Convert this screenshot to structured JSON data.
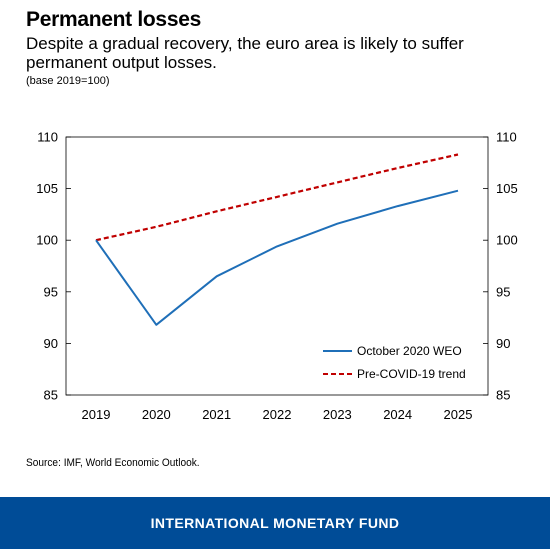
{
  "header": {
    "title": "Permanent losses",
    "subtitle": "Despite a gradual recovery, the euro area is likely to suffer permanent output losses.",
    "note": "(base 2019=100)"
  },
  "source": "Source: IMF, World Economic Outlook.",
  "footer": {
    "org": "INTERNATIONAL MONETARY FUND",
    "background": "#004c97"
  },
  "chart_data": {
    "type": "line",
    "title": "Permanent losses",
    "subtitle": "Despite a gradual recovery, the euro area is likely to suffer permanent output losses.",
    "note": "(base 2019=100)",
    "x": [
      "2019",
      "2020",
      "2021",
      "2022",
      "2023",
      "2024",
      "2025"
    ],
    "series": [
      {
        "name": "October 2020 WEO",
        "values": [
          100,
          91.8,
          96.5,
          99.4,
          101.6,
          103.3,
          104.8
        ],
        "color": "#1f6fb8",
        "style": "solid"
      },
      {
        "name": "Pre-COVID-19 trend",
        "values": [
          100,
          101.3,
          102.8,
          104.2,
          105.6,
          107.0,
          108.3
        ],
        "color": "#c00000",
        "style": "dashed"
      }
    ],
    "ylim": [
      85,
      110
    ],
    "yticks": [
      "85",
      "90",
      "95",
      "100",
      "105",
      "110"
    ],
    "xlabel": "",
    "ylabel": "",
    "legend_position": "bottom-right",
    "grid": false,
    "secondary_y_axis": true
  }
}
